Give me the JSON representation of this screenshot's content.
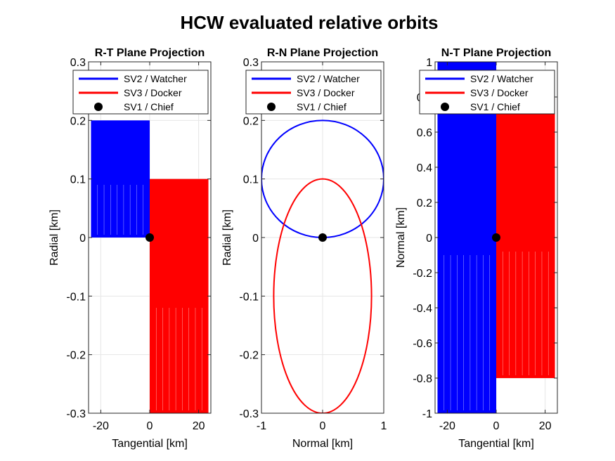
{
  "figure": {
    "title": "HCW evaluated relative orbits"
  },
  "colors": {
    "watcher": "#0000ff",
    "docker": "#ff0000",
    "chief": "#000000",
    "grid": "#e6e6e6",
    "axes": "#262626"
  },
  "chart_data": [
    {
      "type": "line",
      "title": "R-T Plane Projection",
      "xlabel": "Tangential [km]",
      "ylabel": "Radial [km]",
      "xlim": [
        -25,
        25
      ],
      "ylim": [
        -0.3,
        0.3
      ],
      "xticks": [
        -20,
        0,
        20
      ],
      "yticks": [
        -0.3,
        -0.2,
        -0.1,
        0,
        0.1,
        0.2,
        0.3
      ],
      "xticklabels": [
        "-20",
        "0",
        "20"
      ],
      "yticklabels": [
        "-0.3",
        "-0.2",
        "-0.1",
        "0",
        "0.1",
        "0.2",
        "0.3"
      ],
      "grid": true,
      "legend_position": "top-right",
      "series": [
        {
          "name": "SV2 / Watcher",
          "color": "#0000ff",
          "kind": "band",
          "x_range": [
            -24,
            0
          ],
          "y_range": [
            0,
            0.2
          ]
        },
        {
          "name": "SV3 / Docker",
          "color": "#ff0000",
          "kind": "band",
          "x_range": [
            0,
            24
          ],
          "y_range": [
            -0.3,
            0.1
          ]
        },
        {
          "name": "SV1 / Chief",
          "color": "#000000",
          "kind": "point",
          "x": 0,
          "y": 0
        }
      ]
    },
    {
      "type": "line",
      "title": "R-N Plane Projection",
      "xlabel": "Normal [km]",
      "ylabel": "Radial [km]",
      "xlim": [
        -1,
        1
      ],
      "ylim": [
        -0.3,
        0.3
      ],
      "xticks": [
        -1,
        0,
        1
      ],
      "yticks": [
        -0.3,
        -0.2,
        -0.1,
        0,
        0.1,
        0.2,
        0.3
      ],
      "xticklabels": [
        "-1",
        "0",
        "1"
      ],
      "yticklabels": [
        "-0.3",
        "-0.2",
        "-0.1",
        "0",
        "0.1",
        "0.2",
        "0.3"
      ],
      "grid": true,
      "legend_position": "top-right",
      "series": [
        {
          "name": "SV2 / Watcher",
          "color": "#0000ff",
          "kind": "ellipse",
          "center": [
            0,
            0.1
          ],
          "radii": [
            1,
            0.1
          ]
        },
        {
          "name": "SV3 / Docker",
          "color": "#ff0000",
          "kind": "ellipse",
          "center": [
            0,
            -0.1
          ],
          "radii": [
            0.8,
            0.2
          ]
        },
        {
          "name": "SV1 / Chief",
          "color": "#000000",
          "kind": "point",
          "x": 0,
          "y": 0
        }
      ]
    },
    {
      "type": "line",
      "title": "N-T Plane Projection",
      "xlabel": "Tangential [km]",
      "ylabel": "Normal [km]",
      "xlim": [
        -25,
        25
      ],
      "ylim": [
        -1,
        1
      ],
      "xticks": [
        -20,
        0,
        20
      ],
      "yticks": [
        -1,
        -0.8,
        -0.6,
        -0.4,
        -0.2,
        0,
        0.2,
        0.4,
        0.6,
        0.8,
        1
      ],
      "xticklabels": [
        "-20",
        "0",
        "20"
      ],
      "yticklabels": [
        "-1",
        "-0.8",
        "-0.6",
        "-0.4",
        "-0.2",
        "0",
        "0.2",
        "0.4",
        "0.6",
        "0.8",
        "1"
      ],
      "grid": true,
      "legend_position": "top-right",
      "series": [
        {
          "name": "SV2 / Watcher",
          "color": "#0000ff",
          "kind": "band",
          "x_range": [
            -24,
            0
          ],
          "y_range": [
            -1,
            1
          ]
        },
        {
          "name": "SV3 / Docker",
          "color": "#ff0000",
          "kind": "band",
          "x_range": [
            0,
            24
          ],
          "y_range": [
            -0.8,
            0.8
          ]
        },
        {
          "name": "SV1 / Chief",
          "color": "#000000",
          "kind": "point",
          "x": 0,
          "y": 0
        }
      ]
    }
  ]
}
